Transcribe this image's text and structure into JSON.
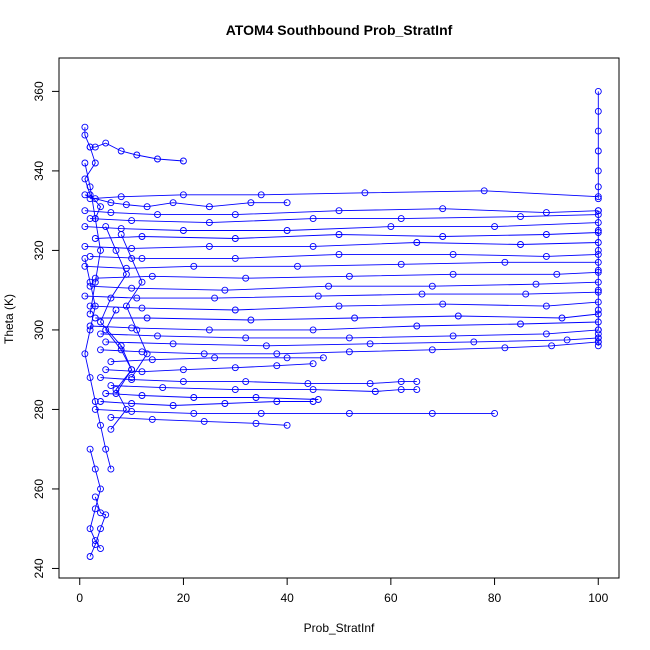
{
  "chart_data": {
    "type": "line",
    "title": "ATOM4 Southbound Prob_StratInf",
    "xlabel": "Prob_StratInf",
    "ylabel": "Theta (K)",
    "xlim": [
      -4,
      104
    ],
    "ylim": [
      237.6,
      368.4
    ],
    "x_ticks": [
      0,
      20,
      40,
      60,
      80,
      100
    ],
    "y_ticks": [
      240,
      260,
      280,
      300,
      320,
      340,
      360
    ],
    "grid": false,
    "legend": "none",
    "marker": "open-circle",
    "color": "#0000ff",
    "series": [
      {
        "x": [
          1,
          1,
          2,
          3,
          1,
          2,
          4,
          3
        ],
        "y": [
          351,
          349,
          346,
          342,
          338,
          334,
          331,
          328
        ]
      },
      {
        "x": [
          2,
          3,
          5,
          8,
          11,
          15,
          20
        ],
        "y": [
          346,
          346,
          347,
          345,
          344,
          343,
          342.5
        ]
      },
      {
        "x": [
          1,
          3,
          6,
          9,
          13,
          18,
          25,
          33,
          40
        ],
        "y": [
          334,
          333,
          332,
          331.5,
          331,
          332,
          331,
          332,
          332
        ]
      },
      {
        "x": [
          2,
          8,
          20,
          35,
          55,
          78,
          100
        ],
        "y": [
          333,
          333.5,
          334,
          334,
          334.5,
          335,
          333.5
        ]
      },
      {
        "x": [
          1,
          6,
          15,
          30,
          50,
          70,
          90,
          100
        ],
        "y": [
          330,
          329.5,
          329,
          329,
          330,
          330.5,
          329.5,
          330
        ]
      },
      {
        "x": [
          2,
          10,
          25,
          45,
          62,
          85,
          100
        ],
        "y": [
          328,
          327.5,
          327,
          328,
          328,
          328.5,
          329
        ]
      },
      {
        "x": [
          1,
          8,
          20,
          40,
          60,
          80,
          100
        ],
        "y": [
          326,
          325.5,
          325,
          325,
          326,
          326,
          327
        ]
      },
      {
        "x": [
          3,
          12,
          30,
          50,
          70,
          90,
          100
        ],
        "y": [
          323,
          323.5,
          323,
          324,
          323.5,
          324,
          324.5
        ]
      },
      {
        "x": [
          1,
          10,
          25,
          45,
          65,
          85,
          100
        ],
        "y": [
          321,
          320.5,
          321,
          321,
          322,
          321.5,
          322
        ]
      },
      {
        "x": [
          2,
          12,
          30,
          50,
          72,
          90,
          100
        ],
        "y": [
          318.5,
          318,
          318,
          319,
          319,
          318.5,
          319
        ]
      },
      {
        "x": [
          1,
          9,
          22,
          42,
          62,
          82,
          100
        ],
        "y": [
          316,
          315.5,
          316,
          316,
          316.5,
          317,
          317
        ]
      },
      {
        "x": [
          3,
          14,
          32,
          52,
          72,
          92,
          100
        ],
        "y": [
          313,
          313.5,
          313,
          313.5,
          314,
          314,
          314.5
        ]
      },
      {
        "x": [
          2,
          10,
          28,
          48,
          68,
          88,
          100
        ],
        "y": [
          311,
          310.5,
          310,
          311,
          311,
          311.5,
          312
        ]
      },
      {
        "x": [
          1,
          11,
          26,
          46,
          66,
          86,
          100
        ],
        "y": [
          308.5,
          308,
          308,
          308.5,
          309,
          309,
          309.5
        ]
      },
      {
        "x": [
          2,
          12,
          30,
          50,
          70,
          90,
          100
        ],
        "y": [
          306,
          305.5,
          305,
          306,
          306.5,
          306,
          307
        ]
      },
      {
        "x": [
          3,
          13,
          33,
          53,
          73,
          93,
          100
        ],
        "y": [
          303,
          303,
          302.5,
          303,
          303.5,
          303,
          304
        ]
      },
      {
        "x": [
          2,
          10,
          25,
          45,
          65,
          85,
          100
        ],
        "y": [
          301,
          300.5,
          300,
          300,
          301,
          301.5,
          302
        ]
      },
      {
        "x": [
          4,
          15,
          32,
          52,
          72,
          90,
          100
        ],
        "y": [
          299,
          298.5,
          298,
          298,
          298.5,
          299,
          300
        ]
      },
      {
        "x": [
          5,
          18,
          36,
          56,
          76,
          94,
          100
        ],
        "y": [
          297,
          296.5,
          296,
          296.5,
          297,
          297.5,
          298
        ]
      },
      {
        "x": [
          4,
          12,
          24,
          38,
          52,
          68,
          82,
          91,
          100
        ],
        "y": [
          295,
          294.5,
          294,
          294,
          294.5,
          295,
          295.5,
          296,
          297
        ]
      },
      {
        "x": [
          6,
          14,
          26,
          40,
          47
        ],
        "y": [
          292,
          292.5,
          293,
          293,
          293
        ]
      },
      {
        "x": [
          5,
          12,
          20,
          30,
          38,
          45
        ],
        "y": [
          290,
          289.5,
          290,
          290.5,
          291,
          291.5
        ]
      },
      {
        "x": [
          4,
          10,
          20,
          32,
          44,
          56,
          62,
          65
        ],
        "y": [
          288,
          287.5,
          287,
          287,
          286.5,
          286.5,
          287,
          287
        ]
      },
      {
        "x": [
          6,
          16,
          30,
          45,
          57,
          62,
          65
        ],
        "y": [
          286,
          285.5,
          285,
          285,
          284.5,
          285,
          285
        ]
      },
      {
        "x": [
          5,
          12,
          22,
          34,
          46
        ],
        "y": [
          284,
          283.5,
          283,
          283,
          282.5
        ]
      },
      {
        "x": [
          4,
          10,
          18,
          28,
          38,
          45
        ],
        "y": [
          282,
          281.5,
          281,
          281.5,
          282,
          282
        ]
      },
      {
        "x": [
          3,
          10,
          22,
          35,
          52,
          68,
          80
        ],
        "y": [
          280,
          279.5,
          279,
          279,
          279,
          279,
          279
        ]
      },
      {
        "x": [
          6,
          14,
          24,
          34,
          40
        ],
        "y": [
          278,
          277.5,
          277,
          276.5,
          276
        ]
      },
      {
        "x": [
          1,
          2,
          3,
          2,
          1,
          2,
          3,
          4,
          5,
          6
        ],
        "y": [
          318,
          312,
          306,
          300,
          294,
          288,
          282,
          276,
          270,
          265
        ]
      },
      {
        "x": [
          2,
          3,
          4,
          3,
          2,
          3,
          4
        ],
        "y": [
          270,
          265,
          260,
          255,
          250,
          247,
          245
        ]
      },
      {
        "x": [
          3,
          4,
          5,
          4,
          3,
          2
        ],
        "y": [
          258,
          254,
          253.5,
          250,
          246,
          243
        ]
      },
      {
        "x": [
          1,
          2,
          3,
          4,
          3,
          2
        ],
        "y": [
          342,
          336,
          328,
          320,
          312,
          304
        ]
      },
      {
        "x": [
          5,
          7,
          9,
          6,
          4,
          8,
          10,
          7
        ],
        "y": [
          326,
          320,
          314,
          308,
          302,
          296,
          290,
          284
        ]
      },
      {
        "x": [
          8,
          10,
          12,
          9,
          11,
          13,
          10
        ],
        "y": [
          324,
          318,
          312,
          306,
          300,
          294,
          288
        ]
      },
      {
        "x": [
          6,
          9,
          7,
          10,
          8,
          5,
          7
        ],
        "y": [
          275,
          280,
          285,
          290,
          295,
          300,
          305
        ]
      },
      {
        "x": [
          100,
          100,
          100,
          100,
          100,
          100,
          100
        ],
        "y": [
          360,
          355,
          350,
          345,
          340,
          336,
          333
        ]
      },
      {
        "x": [
          100,
          100,
          100,
          100,
          100,
          100,
          100
        ],
        "y": [
          330,
          325,
          320,
          315,
          310,
          305,
          300
        ]
      },
      {
        "x": [
          100,
          100,
          100,
          100
        ],
        "y": [
          299,
          298,
          297,
          296
        ]
      }
    ]
  }
}
